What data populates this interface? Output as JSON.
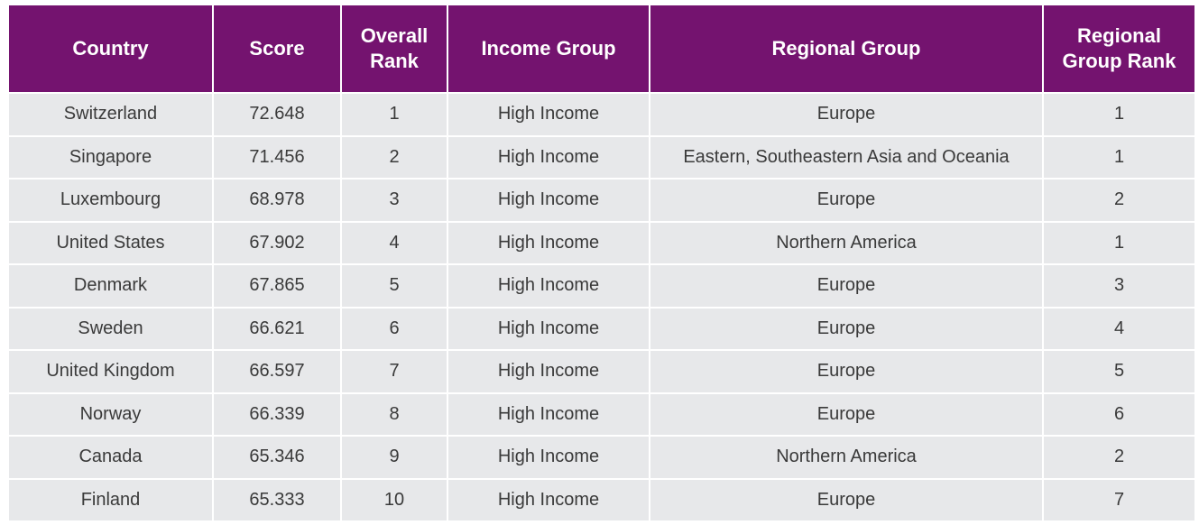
{
  "colors": {
    "header_bg": "#74136f",
    "header_text": "#ffffff",
    "row_bg": "#e7e8ea",
    "cell_text": "#3a3a3a"
  },
  "table": {
    "headers": {
      "country": "Country",
      "score": "Score",
      "overall_rank_line1": "Overall",
      "overall_rank_line2": "Rank",
      "income_group": "Income Group",
      "regional_group": "Regional Group",
      "regional_group_rank_line1": "Regional",
      "regional_group_rank_line2": "Group Rank"
    },
    "rows": [
      {
        "country": "Switzerland",
        "score": "72.648",
        "overall_rank": "1",
        "income_group": "High Income",
        "regional_group": "Europe",
        "regional_group_rank": "1"
      },
      {
        "country": "Singapore",
        "score": "71.456",
        "overall_rank": "2",
        "income_group": "High Income",
        "regional_group": "Eastern, Southeastern Asia and Oceania",
        "regional_group_rank": "1"
      },
      {
        "country": "Luxembourg",
        "score": "68.978",
        "overall_rank": "3",
        "income_group": "High Income",
        "regional_group": "Europe",
        "regional_group_rank": "2"
      },
      {
        "country": "United States",
        "score": "67.902",
        "overall_rank": "4",
        "income_group": "High Income",
        "regional_group": "Northern America",
        "regional_group_rank": "1"
      },
      {
        "country": "Denmark",
        "score": "67.865",
        "overall_rank": "5",
        "income_group": "High Income",
        "regional_group": "Europe",
        "regional_group_rank": "3"
      },
      {
        "country": "Sweden",
        "score": "66.621",
        "overall_rank": "6",
        "income_group": "High Income",
        "regional_group": "Europe",
        "regional_group_rank": "4"
      },
      {
        "country": "United Kingdom",
        "score": "66.597",
        "overall_rank": "7",
        "income_group": "High Income",
        "regional_group": "Europe",
        "regional_group_rank": "5"
      },
      {
        "country": "Norway",
        "score": "66.339",
        "overall_rank": "8",
        "income_group": "High Income",
        "regional_group": "Europe",
        "regional_group_rank": "6"
      },
      {
        "country": "Canada",
        "score": "65.346",
        "overall_rank": "9",
        "income_group": "High Income",
        "regional_group": "Northern America",
        "regional_group_rank": "2"
      },
      {
        "country": "Finland",
        "score": "65.333",
        "overall_rank": "10",
        "income_group": "High Income",
        "regional_group": "Europe",
        "regional_group_rank": "7"
      }
    ]
  }
}
